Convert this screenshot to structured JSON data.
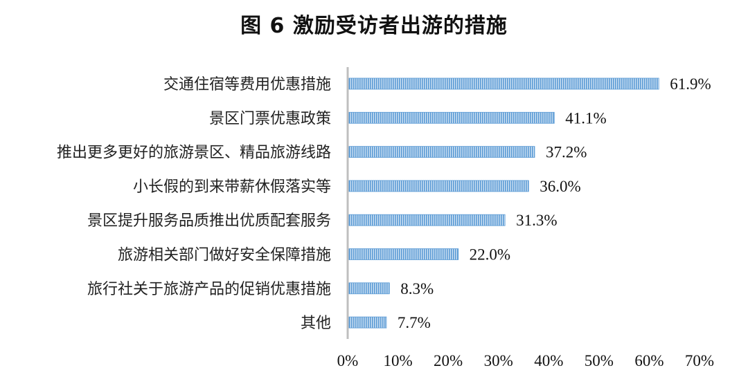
{
  "chart_data": {
    "type": "bar",
    "orientation": "horizontal",
    "title": "图 6  激励受访者出游的措施",
    "categories": [
      "交通住宿等费用优惠措施",
      "景区门票优惠政策",
      "推出更多更好的旅游景区、精品旅游线路",
      "小长假的到来带薪休假落实等",
      "景区提升服务品质推出优质配套服务",
      "旅游相关部门做好安全保障措施",
      "旅行社关于旅游产品的促销优惠措施",
      "其他"
    ],
    "values": [
      61.9,
      41.1,
      37.2,
      36.0,
      31.3,
      22.0,
      8.3,
      7.7
    ],
    "data_labels": [
      "61.9%",
      "41.1%",
      "37.2%",
      "36.0%",
      "31.3%",
      "22.0%",
      "8.3%",
      "7.7%"
    ],
    "xlim": [
      0,
      70
    ],
    "xticks": [
      0,
      10,
      20,
      30,
      40,
      50,
      60,
      70
    ],
    "xtick_labels": [
      "0%",
      "10%",
      "20%",
      "30%",
      "40%",
      "50%",
      "60%",
      "70%"
    ],
    "xlabel": "",
    "ylabel": "",
    "grid": false,
    "legend": "none",
    "bar_color": "#5b9bd5"
  }
}
